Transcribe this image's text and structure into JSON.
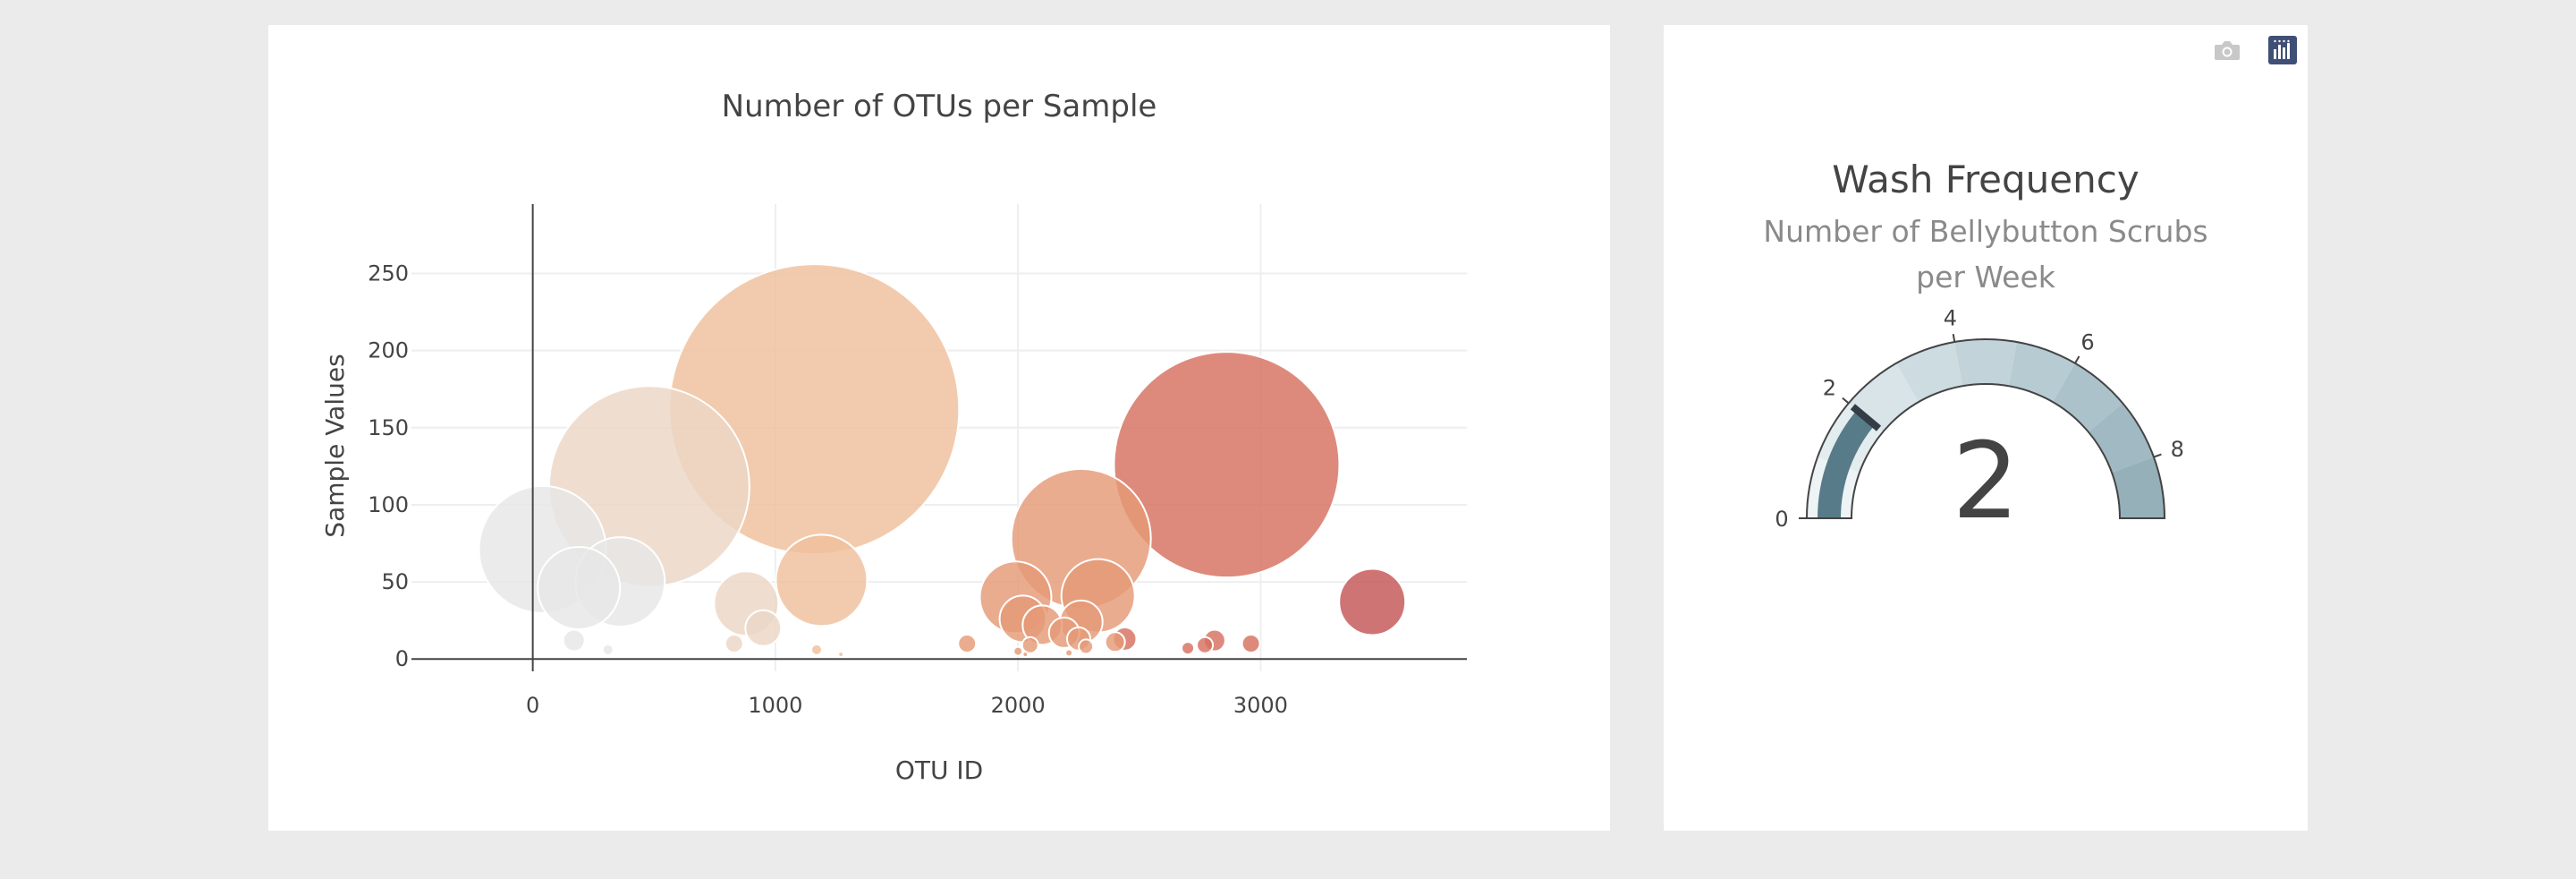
{
  "chart_data": [
    {
      "type": "scatter",
      "mode": "markers",
      "title": "Number of OTUs per Sample",
      "xlabel": "OTU ID",
      "ylabel": "Sample Values",
      "xlim": [
        -500,
        3850
      ],
      "ylim": [
        -8,
        295
      ],
      "xticks": [
        0,
        1000,
        2000,
        3000
      ],
      "yticks": [
        0,
        50,
        100,
        150,
        200,
        250
      ],
      "xtick_labels": [
        "0",
        "1000",
        "2000",
        "3000"
      ],
      "ytick_labels": [
        "0",
        "50",
        "100",
        "150",
        "200",
        "250"
      ],
      "grid": true,
      "marker_size_source": "sample value",
      "colorscale": [
        "#e6e6e6",
        "#ebd7c6",
        "#efc09c",
        "#e59a76",
        "#d5705f",
        "#c45557"
      ],
      "x": [
        40,
        480,
        1160,
        2860,
        2260,
        1190,
        360,
        190,
        880,
        3460,
        2330,
        1990,
        2020,
        2100,
        2190,
        2260,
        950,
        170,
        2250,
        2050,
        2280,
        2440,
        2400,
        2810,
        2960,
        1790,
        2770,
        830,
        310,
        2700,
        2000,
        1170,
        1270,
        2030,
        2210
      ],
      "y": [
        71,
        112,
        162,
        126,
        78,
        51,
        50,
        46,
        36,
        37,
        41,
        40,
        26,
        22,
        17,
        24,
        20,
        12,
        13,
        9,
        8,
        13,
        11,
        12,
        10,
        10,
        9,
        10,
        6,
        7,
        5,
        6,
        3,
        3,
        4
      ]
    },
    {
      "type": "gauge",
      "title": "Wash Frequency",
      "subtitle_line1": "Number of Bellybutton Scrubs",
      "subtitle_line2": "per Week",
      "value": 2,
      "value_label": "2",
      "range": [
        0,
        9
      ],
      "ticks": [
        0,
        2,
        4,
        6,
        8
      ],
      "tick_labels": [
        "0",
        "2",
        "4",
        "6",
        "8"
      ],
      "threshold": 2,
      "bar_color": "#577b88",
      "step_colors": [
        "#eef3f5",
        "#e3ecef",
        "#d8e4e8",
        "#cddce1",
        "#c2d3d9",
        "#b7cbd2",
        "#acc2ca",
        "#a1b9c2",
        "#96b0ba"
      ]
    }
  ],
  "modebar": {
    "camera_icon": "camera-icon",
    "plotly_icon": "plotly-logo-icon"
  }
}
